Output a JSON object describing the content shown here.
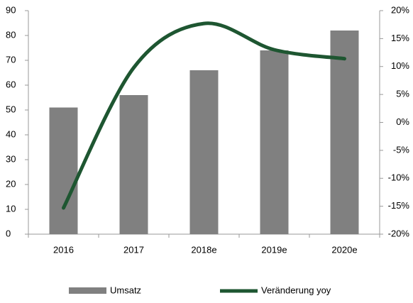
{
  "chart_data": {
    "type": "bar",
    "categories": [
      "2016",
      "2017",
      "2018e",
      "2019e",
      "2020e"
    ],
    "series": [
      {
        "name": "Umsatz",
        "type": "bar",
        "color": "#808080",
        "values": [
          51,
          56,
          66,
          74,
          82
        ]
      },
      {
        "name": "Veränderung yoy",
        "type": "line",
        "axis": "y2",
        "color": "#1e5631",
        "values": [
          -15.3,
          9.8,
          17.7,
          13,
          11.4
        ]
      }
    ],
    "ylim": [
      0,
      90
    ],
    "yticks": [
      0,
      10,
      20,
      30,
      40,
      50,
      60,
      70,
      80,
      90
    ],
    "y2lim": [
      -20,
      20
    ],
    "y2ticks": [
      {
        "value": -20,
        "label": "-20%"
      },
      {
        "value": -15,
        "label": "-15%"
      },
      {
        "value": -10,
        "label": "-10%"
      },
      {
        "value": -5,
        "label": "-5%"
      },
      {
        "value": 0,
        "label": "0%"
      },
      {
        "value": 5,
        "label": "5%"
      },
      {
        "value": 10,
        "label": "10%"
      },
      {
        "value": 15,
        "label": "15%"
      },
      {
        "value": 20,
        "label": "20%"
      }
    ],
    "legend": "bottom"
  }
}
